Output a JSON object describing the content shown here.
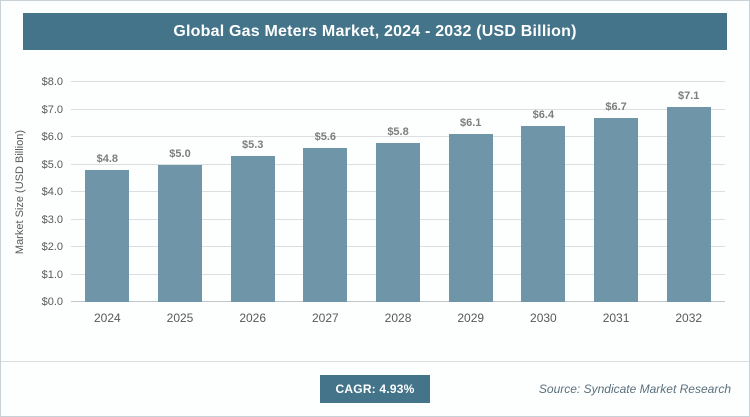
{
  "header": {
    "title": "Global Gas Meters Market, 2024 - 2032 (USD Billion)"
  },
  "chart_data": {
    "type": "bar",
    "categories": [
      "2024",
      "2025",
      "2026",
      "2027",
      "2028",
      "2029",
      "2030",
      "2031",
      "2032"
    ],
    "values": [
      4.8,
      5.0,
      5.3,
      5.6,
      5.8,
      6.1,
      6.4,
      6.7,
      7.1
    ],
    "value_labels": [
      "$4.8",
      "$5.0",
      "$5.3",
      "$5.6",
      "$5.8",
      "$6.1",
      "$6.4",
      "$6.7",
      "$7.1"
    ],
    "title": "Global Gas Meters Market, 2024 - 2032 (USD Billion)",
    "xlabel": "",
    "ylabel": "Market Size (USD Billion)",
    "ylim": [
      0,
      8
    ],
    "ytick_labels": [
      "$0.0",
      "$1.0",
      "$2.0",
      "$3.0",
      "$4.0",
      "$5.0",
      "$6.0",
      "$7.0",
      "$8.0"
    ],
    "grid": "horizontal",
    "legend": "none"
  },
  "footer": {
    "cagr_label": "CAGR: 4.93%",
    "source": "Source: Syndicate Market Research"
  },
  "colors": {
    "accent": "#43748a",
    "bar": "#6f96a8"
  }
}
